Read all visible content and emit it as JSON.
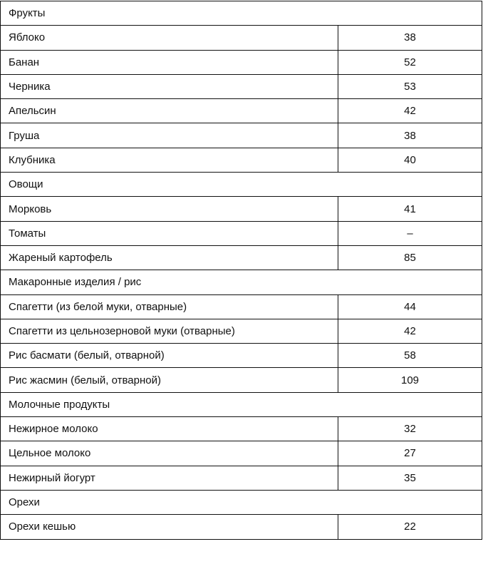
{
  "groups": [
    {
      "title": "Фрукты",
      "rows": [
        {
          "name": "Яблоко",
          "value": "38"
        },
        {
          "name": "Банан",
          "value": "52"
        },
        {
          "name": "Черника",
          "value": "53"
        },
        {
          "name": "Апельсин",
          "value": "42"
        },
        {
          "name": "Груша",
          "value": "38"
        },
        {
          "name": "Клубника",
          "value": "40"
        }
      ]
    },
    {
      "title": "Овощи",
      "rows": [
        {
          "name": "Морковь",
          "value": "41"
        },
        {
          "name": "Томаты",
          "value": "–"
        },
        {
          "name": "Жареный картофель",
          "value": "85"
        }
      ]
    },
    {
      "title": "Макаронные изделия / рис",
      "rows": [
        {
          "name": "Спагетти (из белой муки, отварные)",
          "value": "44"
        },
        {
          "name": "Спагетти из цельнозерновой муки (отварные)",
          "value": "42"
        },
        {
          "name": "Рис басмати (белый, отварной)",
          "value": "58"
        },
        {
          "name": "Рис жасмин (белый, отварной)",
          "value": "109"
        }
      ]
    },
    {
      "title": "Молочные продукты",
      "rows": [
        {
          "name": "Нежирное молоко",
          "value": "32"
        },
        {
          "name": "Цельное молоко",
          "value": "27"
        },
        {
          "name": "Нежирный йогурт",
          "value": "35"
        }
      ]
    },
    {
      "title": "Орехи",
      "rows": [
        {
          "name": "Орехи кешью",
          "value": "22"
        }
      ]
    }
  ]
}
